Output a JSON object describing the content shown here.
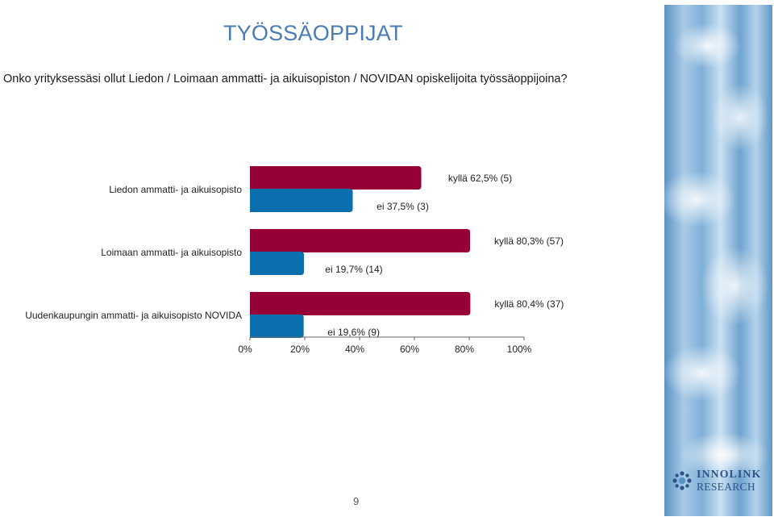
{
  "slide": {
    "title": "TYÖSSÄOPPIJAT",
    "question": "Onko yrityksessäsi ollut Liedon / Loimaan ammatti- ja aikuisopiston / NOVIDAN opiskelijoita työssäoppijoina?",
    "page_number": "9"
  },
  "logo": {
    "line1": "INNOLINK",
    "line2": "RESEARCH"
  },
  "colors": {
    "title": "#4a7cb4",
    "kylla": "#960036",
    "ei": "#0b6fad"
  },
  "chart_data": {
    "type": "bar",
    "orientation": "horizontal",
    "categories": [
      "Liedon ammatti- ja aikuisopisto",
      "Loimaan ammatti- ja aikuisopisto",
      "Uudenkaupungin ammatti- ja aikuisopisto NOVIDA"
    ],
    "series": [
      {
        "key": "kylla",
        "values": [
          62.5,
          80.3,
          80.4
        ],
        "labels": [
          "kyllä 62,5% (5)",
          "kyllä 80,3% (57)",
          "kyllä 80,4% (37)"
        ]
      },
      {
        "key": "ei",
        "values": [
          37.5,
          19.7,
          19.6
        ],
        "labels": [
          "ei 37,5% (3)",
          "ei 19,7% (14)",
          "ei 19,6% (9)"
        ]
      }
    ],
    "xlim": [
      0,
      100
    ],
    "xticks": [
      0,
      20,
      40,
      60,
      80,
      100
    ],
    "xtick_labels": [
      "0%",
      "20%",
      "40%",
      "60%",
      "80%",
      "100%"
    ],
    "grid": false,
    "legend": "none"
  }
}
